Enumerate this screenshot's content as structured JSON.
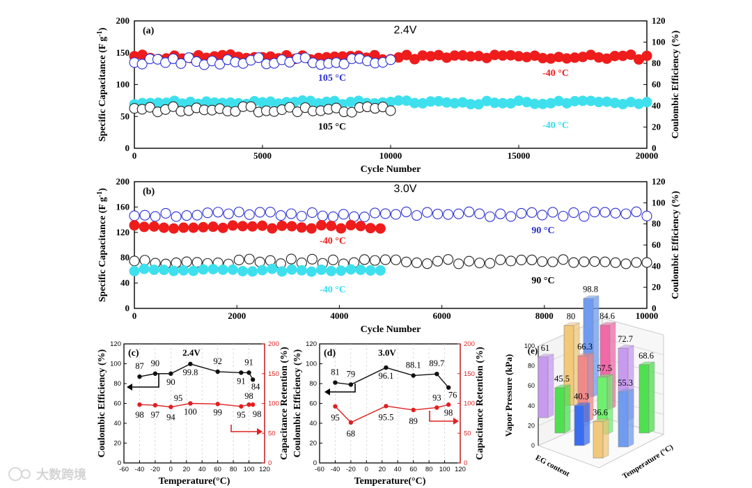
{
  "chart_data": [
    {
      "type": "scatter",
      "panel": "(a)",
      "title": "2.4V",
      "xlabel": "Cycle Number",
      "ylabel": "Specific Capacitance (F g-1)",
      "y2label": "Coulombic Efficiency (%)",
      "xlim": [
        0,
        20000
      ],
      "ylim": [
        0,
        200
      ],
      "y2lim": [
        0,
        120
      ],
      "xticks": [
        "0",
        "5000",
        "10000",
        "15000",
        "20000"
      ],
      "yticks": [
        "0",
        "50",
        "100",
        "150",
        "200"
      ],
      "y2ticks": [
        "0",
        "20",
        "40",
        "60",
        "80",
        "100",
        "120"
      ],
      "series": [
        {
          "name": "-40 °C CE",
          "label": "-40 °C",
          "axis": "right",
          "color": "#ef1c1c",
          "marker": "filled",
          "x_start": 0,
          "x_end": 20000,
          "mean": 86,
          "noise": 2.5,
          "n": 65
        },
        {
          "name": "105 °C CE",
          "label": "105 °C",
          "axis": "right",
          "color": "#2a2fd0",
          "marker": "open",
          "x_start": 0,
          "x_end": 10000,
          "mean": 82,
          "noise": 3.5,
          "n": 34
        },
        {
          "name": "-40 °C capacitance",
          "label": "-40 °C",
          "axis": "left",
          "color": "#3fe0ee",
          "marker": "filled",
          "x_start": 0,
          "x_end": 20000,
          "mean": 72,
          "noise": 3,
          "n": 65
        },
        {
          "name": "105 °C capacitance",
          "label": "105 °C",
          "axis": "left",
          "color": "#222222",
          "marker": "open",
          "x_start": 0,
          "x_end": 10000,
          "mean": 61,
          "noise": 4.5,
          "n": 34
        }
      ]
    },
    {
      "type": "scatter",
      "panel": "(b)",
      "title": "3.0V",
      "xlabel": "Cycle Number",
      "ylabel": "Specific Capacitance (F g-1)",
      "y2label": "Coulombic Efficiency (%)",
      "xlim": [
        0,
        10000
      ],
      "ylim": [
        0,
        200
      ],
      "y2lim": [
        0,
        120
      ],
      "xticks": [
        "0",
        "2000",
        "4000",
        "6000",
        "8000",
        "10000"
      ],
      "yticks": [
        "0",
        "40",
        "80",
        "120",
        "160",
        "200"
      ],
      "y2ticks": [
        "0",
        "20",
        "40",
        "60",
        "80",
        "100",
        "120"
      ],
      "series": [
        {
          "name": "90 °C CE",
          "label": "90 °C",
          "axis": "right",
          "color": "#2a2fd0",
          "marker": "open",
          "x_start": 0,
          "x_end": 10000,
          "mean": 89,
          "noise": 2.5,
          "n": 50
        },
        {
          "name": "-40 °C CE",
          "label": "-40 °C",
          "axis": "right",
          "color": "#ef1c1c",
          "marker": "filled",
          "x_start": 0,
          "x_end": 4800,
          "mean": 77,
          "noise": 2,
          "n": 26
        },
        {
          "name": "90 °C capacitance",
          "label": "90 °C",
          "axis": "left",
          "color": "#222222",
          "marker": "open",
          "x_start": 0,
          "x_end": 10000,
          "mean": 74,
          "noise": 4,
          "n": 50
        },
        {
          "name": "-40 °C capacitance",
          "label": "-40 °C",
          "axis": "left",
          "color": "#3fe0ee",
          "marker": "filled",
          "x_start": 0,
          "x_end": 4800,
          "mean": 60,
          "noise": 2.5,
          "n": 26
        }
      ]
    },
    {
      "type": "line",
      "panel": "(c)",
      "title": "2.4V",
      "xlabel": "Temperature(°C)",
      "ylabel": "Coulombic Efficiency (%)",
      "y2label": "Capacitance Retention (%)",
      "xlim": [
        -60,
        120
      ],
      "ylim": [
        0,
        120
      ],
      "y2lim": [
        0,
        200
      ],
      "xticks": [
        "-60",
        "-40",
        "-20",
        "0",
        "20",
        "40",
        "60",
        "80",
        "100",
        "120"
      ],
      "yticks": [
        "0",
        "20",
        "40",
        "60",
        "80",
        "100",
        "120"
      ],
      "y2ticks": [
        "0",
        "50",
        "100",
        "150",
        "200"
      ],
      "series": [
        {
          "name": "Coulombic Efficiency",
          "axis": "left",
          "color": "#111111",
          "x": [
            -40,
            -20,
            0,
            25,
            60,
            90,
            100,
            105
          ],
          "y": [
            87,
            90,
            90,
            99.8,
            92,
            91,
            91,
            84
          ],
          "labels": [
            "87",
            "90",
            "90",
            "99.8",
            "92",
            "91",
            "91",
            "84"
          ]
        },
        {
          "name": "Capacitance Retention",
          "axis": "right",
          "color": "#e02020",
          "x": [
            -40,
            -20,
            0,
            25,
            60,
            90,
            100,
            105
          ],
          "y": [
            98,
            97,
            94,
            100,
            99,
            95,
            98,
            98
          ],
          "labels": [
            "98",
            "97",
            "94",
            "100",
            "99",
            "95",
            "98",
            "98"
          ]
        }
      ],
      "extra_labels": [
        "95"
      ]
    },
    {
      "type": "line",
      "panel": "(d)",
      "title": "3.0V",
      "xlabel": "Temperature(°C)",
      "ylabel": "Coulombic Efficiency (%)",
      "y2label": "Capacitance Retention (%)",
      "xlim": [
        -60,
        120
      ],
      "ylim": [
        0,
        120
      ],
      "y2lim": [
        0,
        200
      ],
      "xticks": [
        "-60",
        "-40",
        "-20",
        "0",
        "20",
        "40",
        "60",
        "80",
        "100",
        "120"
      ],
      "yticks": [
        "0",
        "20",
        "40",
        "60",
        "80",
        "100",
        "120"
      ],
      "y2ticks": [
        "0",
        "50",
        "100",
        "150",
        "200"
      ],
      "series": [
        {
          "name": "Coulombic Efficiency",
          "axis": "left",
          "color": "#111111",
          "x": [
            -40,
            -20,
            25,
            60,
            90,
            105
          ],
          "y": [
            81,
            79,
            96.1,
            88.1,
            89.7,
            76
          ],
          "labels": [
            "81",
            "79",
            "96.1",
            "88.1",
            "89.7",
            "76"
          ]
        },
        {
          "name": "Capacitance Retention",
          "axis": "right",
          "color": "#e02020",
          "x": [
            -40,
            -20,
            25,
            60,
            90,
            105
          ],
          "y": [
            95,
            68,
            95.5,
            89,
            93,
            98
          ],
          "labels": [
            "95",
            "68",
            "95.5",
            "89",
            "93",
            "98"
          ]
        }
      ]
    },
    {
      "type": "bar3d",
      "panel": "(e)",
      "zlabel": "Vapor Pressure (kPa)",
      "xlabel": "EG content",
      "ylabel": "Temperature (°C)",
      "zticks": [
        "0",
        "20",
        "40",
        "60",
        "80",
        "100"
      ],
      "bars": [
        {
          "value": 61,
          "label": "61",
          "color": "#c79af0"
        },
        {
          "value": 80,
          "label": "80",
          "color": "#f2c87a"
        },
        {
          "value": 98.8,
          "label": "98.8",
          "color": "#6f9cf0"
        },
        {
          "value": 45.5,
          "label": "45.5",
          "color": "#4fe04f"
        },
        {
          "value": 66.3,
          "label": "66.3",
          "color": "#f08a8a"
        },
        {
          "value": 84.6,
          "label": "84.6",
          "color": "#f06aa8"
        },
        {
          "value": 40.3,
          "label": "40.3",
          "color": "#3a6ef0"
        },
        {
          "value": 57.5,
          "label": "57.5",
          "color": "#6ef06e"
        },
        {
          "value": 72.7,
          "label": "72.7",
          "color": "#c79af0"
        },
        {
          "value": 36.6,
          "label": "36.6",
          "color": "#f2c87a"
        },
        {
          "value": 55.3,
          "label": "55.3",
          "color": "#6f9cf0"
        },
        {
          "value": 68.6,
          "label": "68.6",
          "color": "#4fe04f"
        }
      ]
    }
  ],
  "watermark": {
    "text": "大数跨境"
  }
}
